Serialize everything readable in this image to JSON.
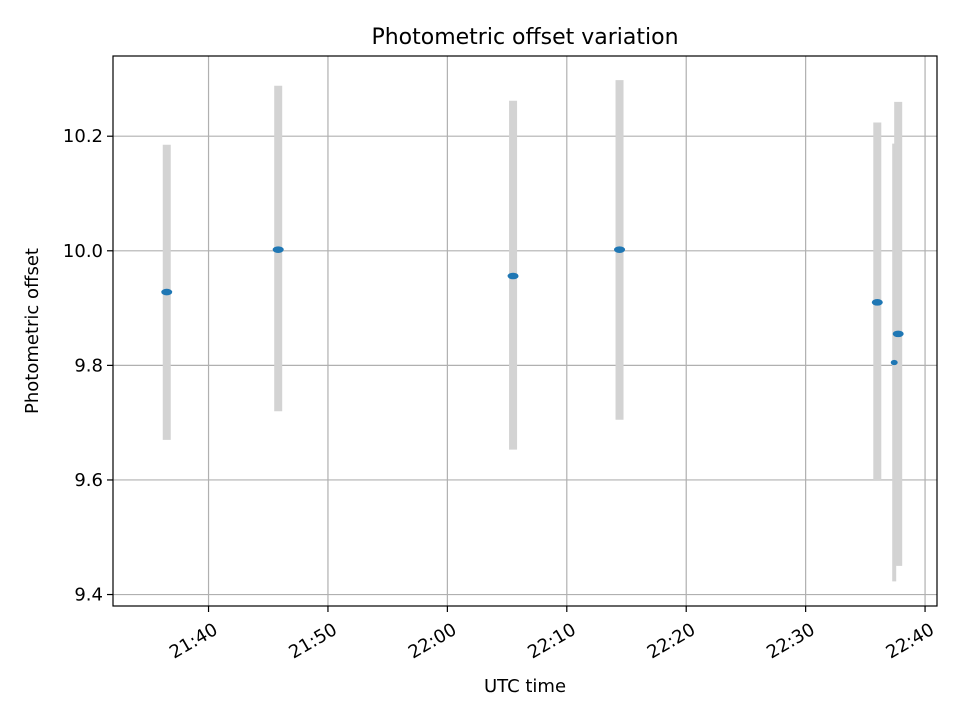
{
  "chart_data": {
    "type": "scatter",
    "title": "Photometric offset variation",
    "xlabel": "UTC time",
    "ylabel": "Photometric offset",
    "xlim": [
      "21:32",
      "22:41"
    ],
    "ylim": [
      9.38,
      10.34
    ],
    "x_ticks": [
      "21:40",
      "21:50",
      "22:00",
      "22:10",
      "22:20",
      "22:30",
      "22:40"
    ],
    "y_ticks": [
      "9.4",
      "9.6",
      "9.8",
      "10.0",
      "10.2"
    ],
    "grid": true,
    "colors": {
      "point": "#1f77b4",
      "errorbar": "#d3d3d3",
      "grid": "#b0b0b0",
      "axes": "#000000"
    },
    "points": [
      {
        "time": "21:36:30",
        "y": 9.928,
        "ylow": 9.67,
        "yhigh": 10.185,
        "size": "large"
      },
      {
        "time": "21:45:50",
        "y": 10.002,
        "ylow": 9.72,
        "yhigh": 10.288,
        "size": "large"
      },
      {
        "time": "22:05:30",
        "y": 9.956,
        "ylow": 9.653,
        "yhigh": 10.262,
        "size": "large"
      },
      {
        "time": "22:14:25",
        "y": 10.002,
        "ylow": 9.705,
        "yhigh": 10.298,
        "size": "large"
      },
      {
        "time": "22:36:00",
        "y": 9.91,
        "ylow": 9.6,
        "yhigh": 10.224,
        "size": "large"
      },
      {
        "time": "22:37:25",
        "y": 9.805,
        "ylow": 9.423,
        "yhigh": 10.187,
        "size": "small"
      },
      {
        "time": "22:37:45",
        "y": 9.855,
        "ylow": 9.45,
        "yhigh": 10.26,
        "size": "large"
      }
    ]
  }
}
